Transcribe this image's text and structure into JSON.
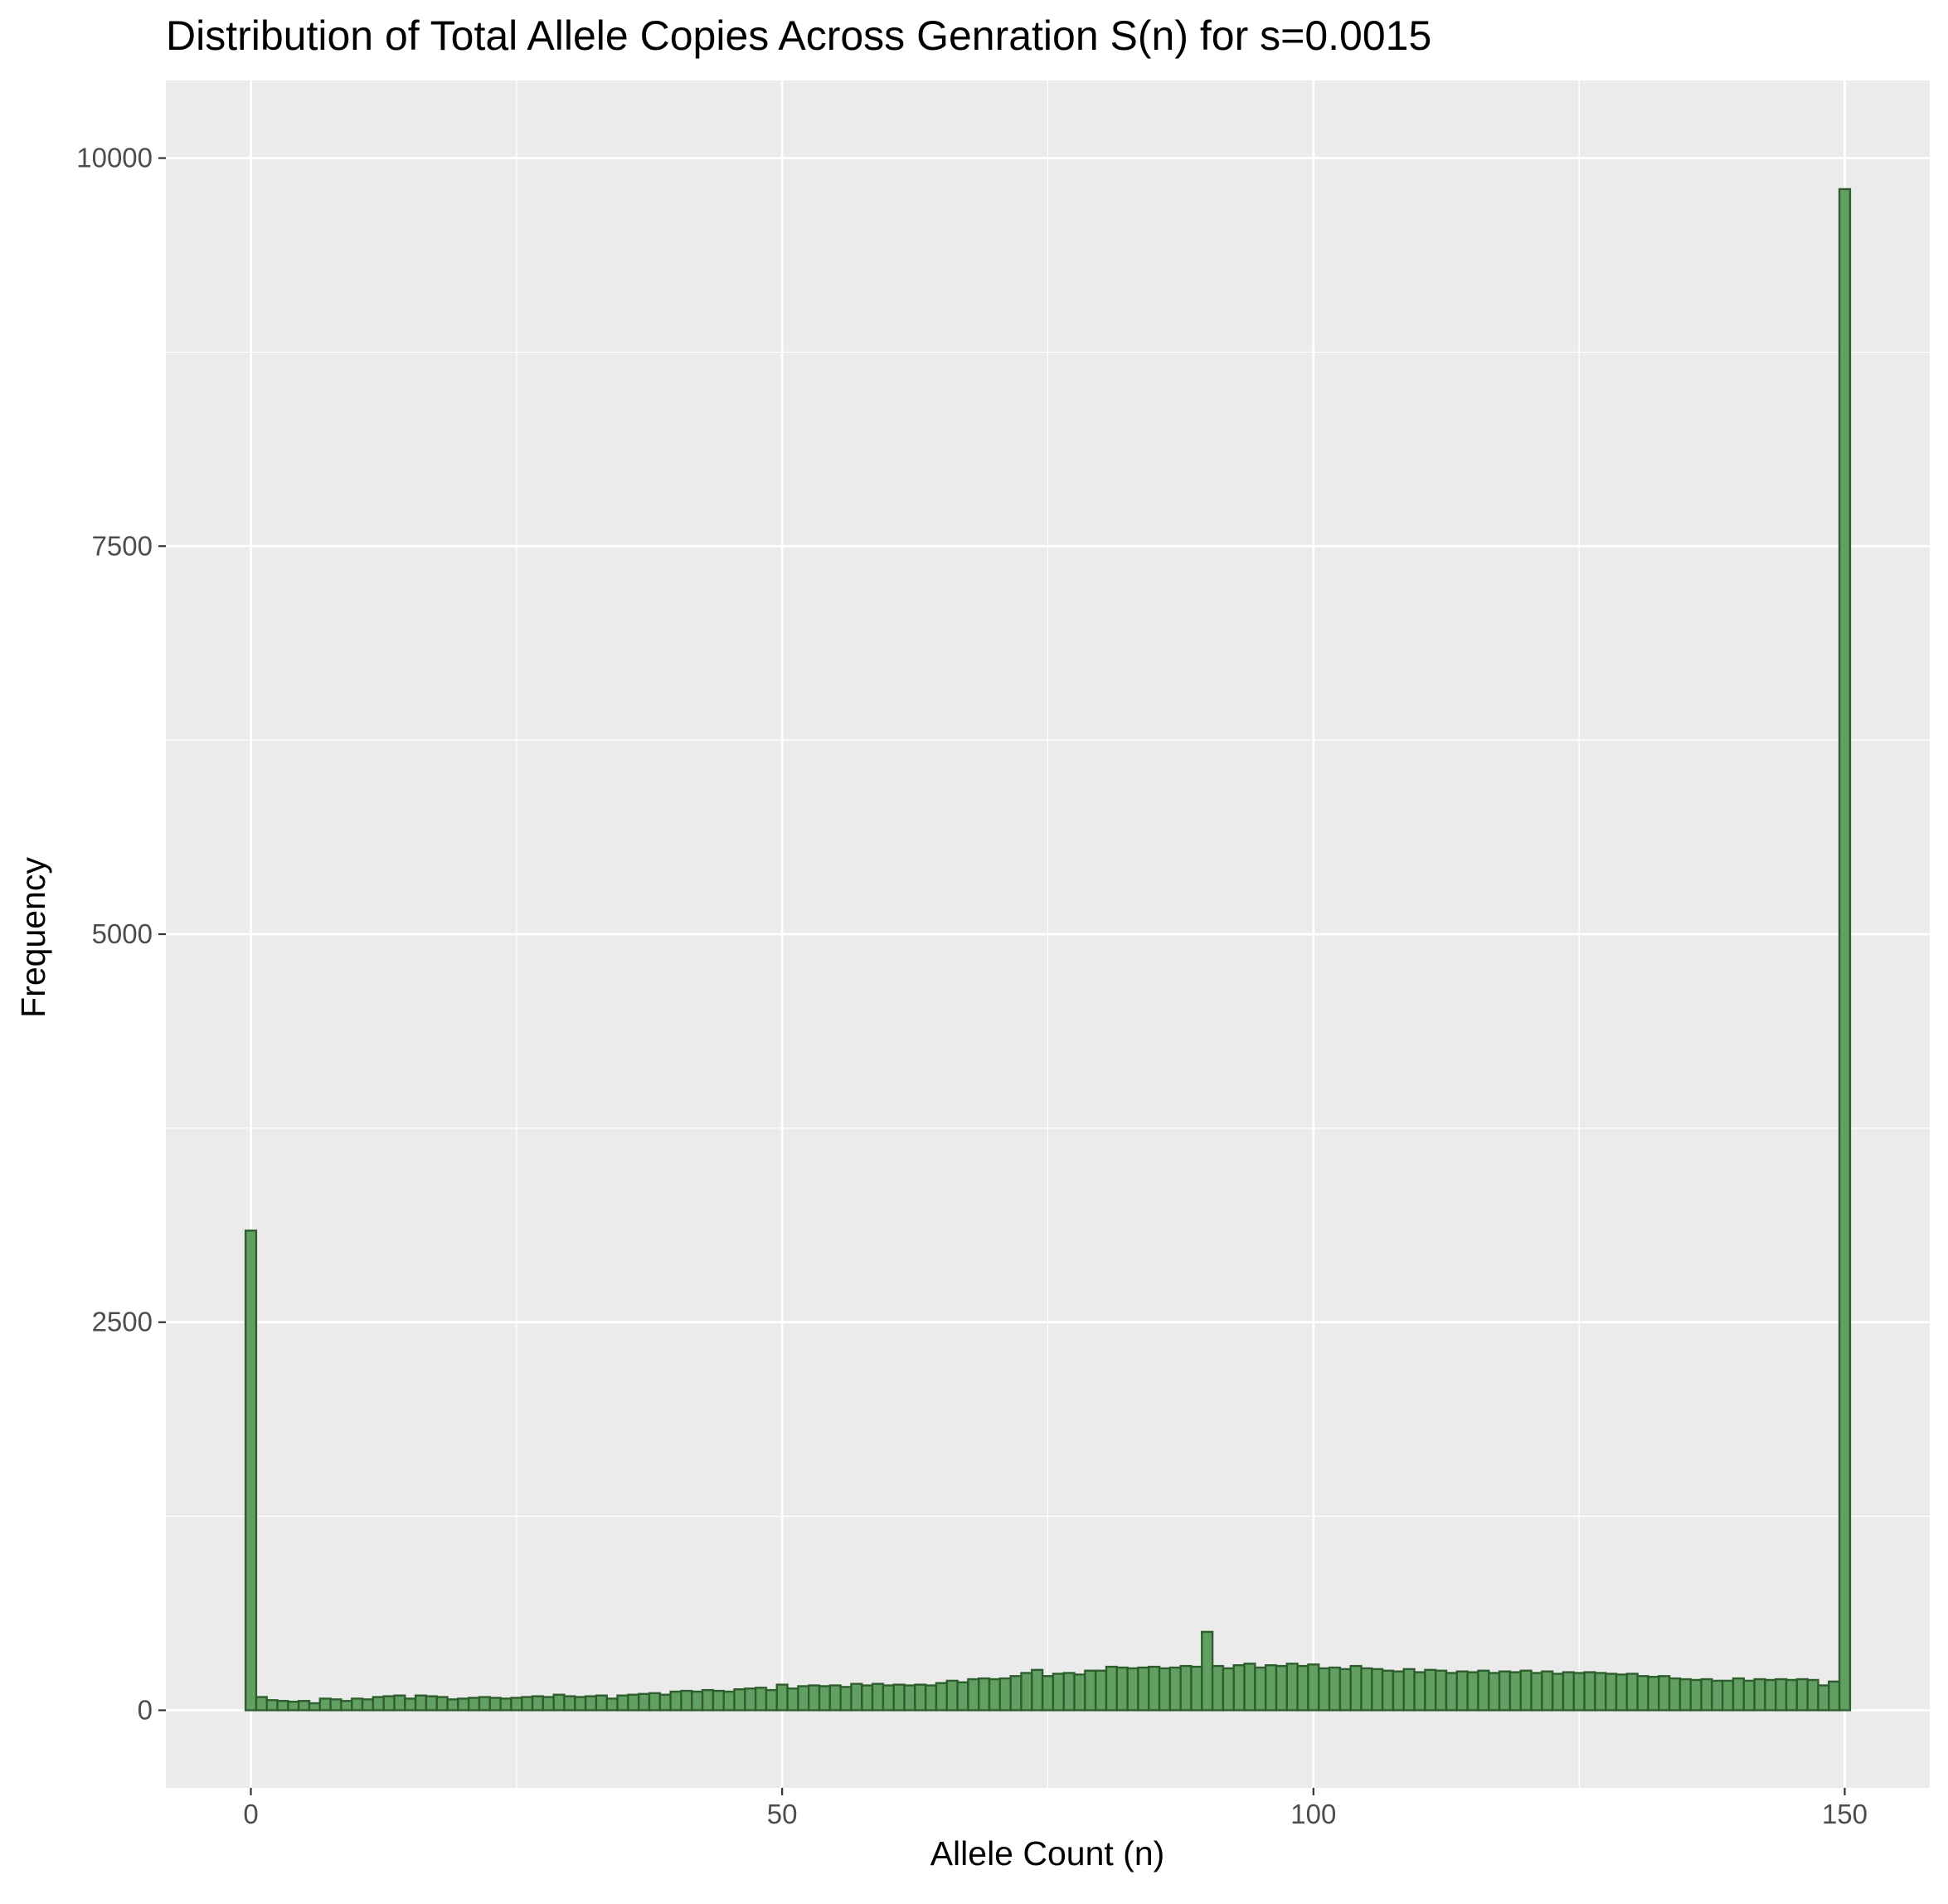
{
  "chart_data": {
    "type": "bar",
    "title": "Distribution of Total Allele Copies Across Genration S(n) for s=0.0015",
    "xlabel": "Allele Count (n)",
    "ylabel": "Frequency",
    "xlim": [
      -8,
      158
    ],
    "ylim": [
      -500,
      10500
    ],
    "x_ticks": [
      0,
      50,
      100,
      150
    ],
    "x_tick_labels": [
      "0",
      "50",
      "100",
      "150"
    ],
    "y_ticks": [
      0,
      2500,
      5000,
      7500,
      10000
    ],
    "y_tick_labels": [
      "0",
      "2500",
      "5000",
      "7500",
      "10000"
    ],
    "grid": true,
    "bar_fill": "#62a062",
    "bar_stroke": "#2e5e2e",
    "panel_background": "#ebebeb",
    "grid_color": "#ffffff",
    "categories": [
      0,
      1,
      2,
      3,
      4,
      5,
      6,
      7,
      8,
      9,
      10,
      11,
      12,
      13,
      14,
      15,
      16,
      17,
      18,
      19,
      20,
      21,
      22,
      23,
      24,
      25,
      26,
      27,
      28,
      29,
      30,
      31,
      32,
      33,
      34,
      35,
      36,
      37,
      38,
      39,
      40,
      41,
      42,
      43,
      44,
      45,
      46,
      47,
      48,
      49,
      50,
      51,
      52,
      53,
      54,
      55,
      56,
      57,
      58,
      59,
      60,
      61,
      62,
      63,
      64,
      65,
      66,
      67,
      68,
      69,
      70,
      71,
      72,
      73,
      74,
      75,
      76,
      77,
      78,
      79,
      80,
      81,
      82,
      83,
      84,
      85,
      86,
      87,
      88,
      89,
      90,
      91,
      92,
      93,
      94,
      95,
      96,
      97,
      98,
      99,
      100,
      101,
      102,
      103,
      104,
      105,
      106,
      107,
      108,
      109,
      110,
      111,
      112,
      113,
      114,
      115,
      116,
      117,
      118,
      119,
      120,
      121,
      122,
      123,
      124,
      125,
      126,
      127,
      128,
      129,
      130,
      131,
      132,
      133,
      134,
      135,
      136,
      137,
      138,
      139,
      140,
      141,
      142,
      143,
      144,
      145,
      146,
      147,
      148,
      149,
      150
    ],
    "values": [
      3090,
      85,
      65,
      60,
      55,
      60,
      45,
      75,
      70,
      60,
      75,
      70,
      85,
      90,
      95,
      75,
      95,
      90,
      85,
      70,
      75,
      80,
      85,
      80,
      75,
      80,
      85,
      90,
      85,
      100,
      90,
      85,
      90,
      95,
      75,
      95,
      100,
      105,
      110,
      100,
      120,
      125,
      120,
      130,
      125,
      120,
      135,
      140,
      145,
      130,
      165,
      140,
      155,
      160,
      155,
      160,
      150,
      170,
      160,
      170,
      160,
      165,
      160,
      165,
      160,
      175,
      190,
      180,
      200,
      205,
      200,
      205,
      220,
      240,
      260,
      220,
      235,
      240,
      230,
      255,
      255,
      280,
      275,
      270,
      275,
      280,
      270,
      275,
      285,
      280,
      505,
      285,
      270,
      290,
      300,
      275,
      290,
      285,
      300,
      285,
      295,
      270,
      275,
      265,
      285,
      270,
      265,
      255,
      250,
      265,
      245,
      260,
      255,
      240,
      250,
      245,
      255,
      240,
      250,
      245,
      255,
      240,
      250,
      235,
      245,
      240,
      245,
      240,
      235,
      230,
      235,
      220,
      215,
      220,
      205,
      200,
      195,
      200,
      190,
      190,
      205,
      190,
      200,
      195,
      200,
      195,
      200,
      195,
      160,
      185,
      9800
    ]
  }
}
